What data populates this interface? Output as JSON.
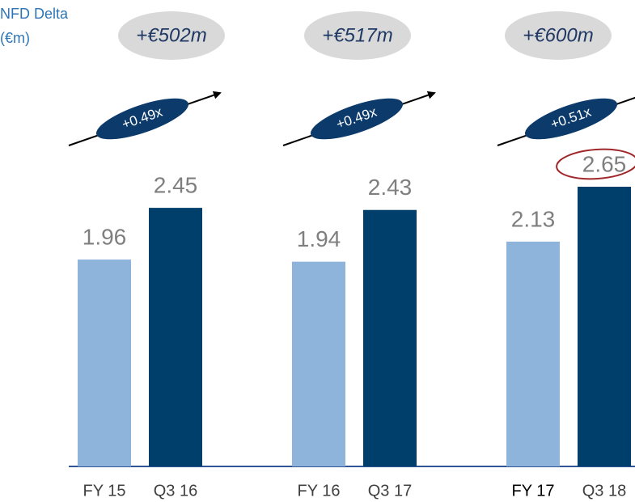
{
  "chart_data": {
    "type": "bar",
    "axis_label": [
      "NFD Delta",
      "(€m)"
    ],
    "categories": [
      "FY 15",
      "Q3 16",
      "FY 16",
      "Q3 17",
      "FY 17",
      "Q3 18"
    ],
    "values": [
      1.96,
      2.45,
      1.94,
      2.43,
      2.13,
      2.65
    ],
    "bar_colors": [
      "#8fb4dc",
      "#003e6c"
    ],
    "deltas": [
      "+€502m",
      "+€517m",
      "+€600m"
    ],
    "multiples": [
      "+0.49x",
      "+0.49x",
      "+0.51x"
    ]
  }
}
